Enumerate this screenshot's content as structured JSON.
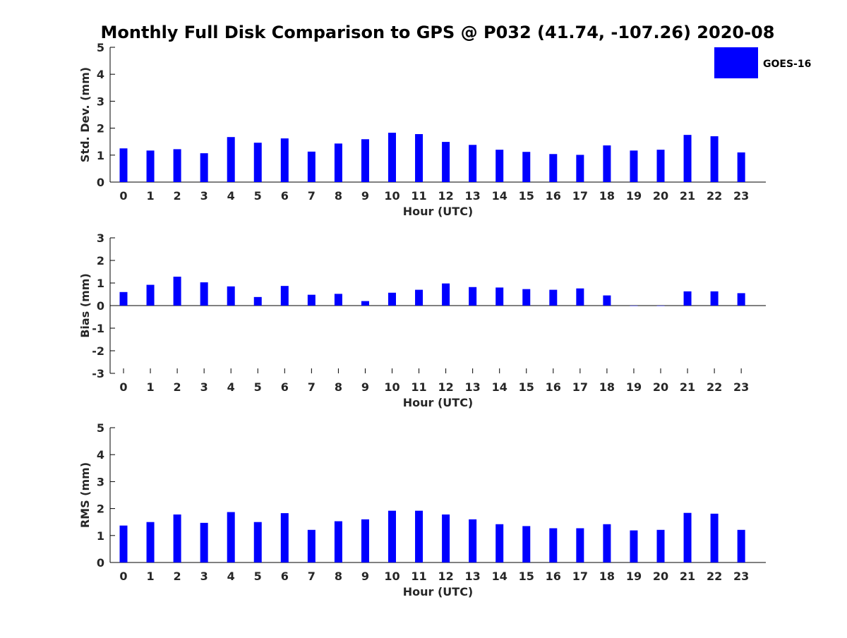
{
  "title": "Monthly Full Disk Comparison to GPS @ P032 (41.74, -107.26) 2020-08",
  "legend": {
    "label": "GOES-16",
    "color": "#0000ff",
    "placement": "top-right"
  },
  "chart_data": [
    {
      "type": "bar",
      "xlabel": "Hour (UTC)",
      "ylabel": "Std. Dev. (mm)",
      "ylim": [
        0,
        5
      ],
      "yticks": [
        "0",
        "1",
        "2",
        "3",
        "4",
        "5"
      ],
      "categories": [
        "0",
        "1",
        "2",
        "3",
        "4",
        "5",
        "6",
        "7",
        "8",
        "9",
        "10",
        "11",
        "12",
        "13",
        "14",
        "15",
        "16",
        "17",
        "18",
        "19",
        "20",
        "21",
        "22",
        "23"
      ],
      "series": [
        {
          "name": "GOES-16",
          "color": "#0000ff",
          "values": [
            1.25,
            1.17,
            1.22,
            1.07,
            1.67,
            1.46,
            1.62,
            1.13,
            1.43,
            1.59,
            1.83,
            1.78,
            1.49,
            1.38,
            1.2,
            1.12,
            1.04,
            1.01,
            1.36,
            1.17,
            1.2,
            1.75,
            1.7,
            1.1
          ]
        }
      ]
    },
    {
      "type": "bar",
      "xlabel": "Hour (UTC)",
      "ylabel": "Bias (mm)",
      "ylim": [
        -3,
        3
      ],
      "yticks": [
        "-3",
        "-2",
        "-1",
        "0",
        "1",
        "2",
        "3"
      ],
      "categories": [
        "0",
        "1",
        "2",
        "3",
        "4",
        "5",
        "6",
        "7",
        "8",
        "9",
        "10",
        "11",
        "12",
        "13",
        "14",
        "15",
        "16",
        "17",
        "18",
        "19",
        "20",
        "21",
        "22",
        "23"
      ],
      "series": [
        {
          "name": "GOES-16",
          "color": "#0000ff",
          "values": [
            0.6,
            0.92,
            1.28,
            1.03,
            0.85,
            0.38,
            0.87,
            0.48,
            0.52,
            0.2,
            0.57,
            0.7,
            0.98,
            0.82,
            0.8,
            0.73,
            0.7,
            0.76,
            0.45,
            0.0,
            0.0,
            0.63,
            0.63,
            0.55
          ]
        }
      ]
    },
    {
      "type": "bar",
      "xlabel": "Hour (UTC)",
      "ylabel": "RMS (mm)",
      "ylim": [
        0,
        5
      ],
      "yticks": [
        "0",
        "1",
        "2",
        "3",
        "4",
        "5"
      ],
      "categories": [
        "0",
        "1",
        "2",
        "3",
        "4",
        "5",
        "6",
        "7",
        "8",
        "9",
        "10",
        "11",
        "12",
        "13",
        "14",
        "15",
        "16",
        "17",
        "18",
        "19",
        "20",
        "21",
        "22",
        "23"
      ],
      "series": [
        {
          "name": "GOES-16",
          "color": "#0000ff",
          "values": [
            1.37,
            1.5,
            1.78,
            1.47,
            1.87,
            1.5,
            1.83,
            1.21,
            1.53,
            1.6,
            1.92,
            1.92,
            1.78,
            1.6,
            1.42,
            1.35,
            1.27,
            1.27,
            1.42,
            1.19,
            1.21,
            1.84,
            1.81,
            1.21
          ]
        }
      ]
    }
  ]
}
